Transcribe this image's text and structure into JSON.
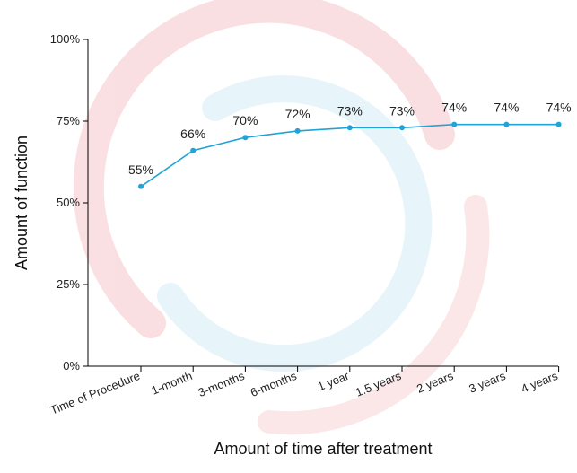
{
  "colors": {
    "line": "#1fa3d9",
    "axis": "#000000",
    "watermark_red": "#f5c6cb",
    "watermark_blue": "#d4ecf7"
  },
  "chart_data": {
    "type": "line",
    "categories": [
      "Time of Procedure",
      "1-month",
      "3-months",
      "6-months",
      "1 year",
      "1.5 years",
      "2 years",
      "3 years",
      "4 years"
    ],
    "values": [
      55,
      66,
      70,
      72,
      73,
      73,
      74,
      74,
      74
    ],
    "data_labels": [
      "55%",
      "66%",
      "70%",
      "72%",
      "73%",
      "73%",
      "74%",
      "74%",
      "74%"
    ],
    "y_ticks": [
      0,
      25,
      50,
      75,
      100
    ],
    "y_tick_labels": [
      "0%",
      "25%",
      "50%",
      "75%",
      "100%"
    ],
    "ylim": [
      0,
      100
    ],
    "xlabel": "Amount of time after treatment",
    "ylabel": "Amount of function",
    "grid": false,
    "legend": "none"
  }
}
